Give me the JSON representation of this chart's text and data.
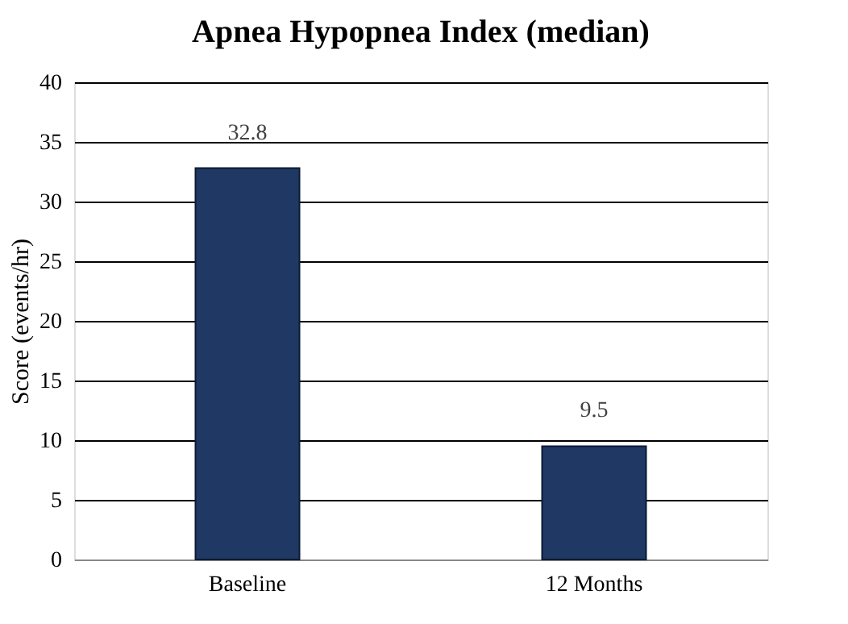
{
  "chart_data": {
    "type": "bar",
    "title": "Apnea Hypopnea Index (median)",
    "ylabel": "Score (events/hr)",
    "categories": [
      "Baseline",
      "12 Months"
    ],
    "values": [
      32.8,
      9.5
    ],
    "color": "#1f3864",
    "ylim": [
      0,
      40
    ],
    "yticks": [
      0,
      5,
      10,
      15,
      20,
      25,
      30,
      35,
      40
    ],
    "grid": "y",
    "data_labels": true
  }
}
